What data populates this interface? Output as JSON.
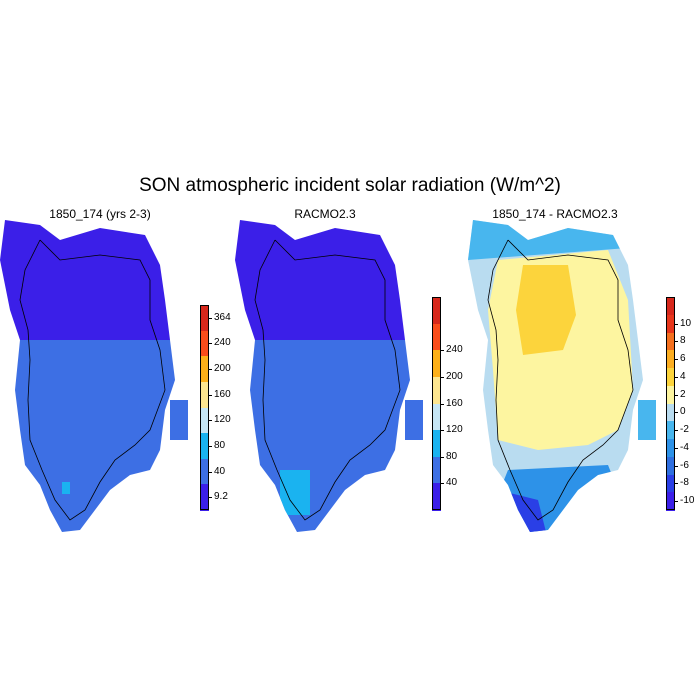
{
  "figure": {
    "title": "SON atmospheric incident solar radiation (W/m^2)"
  },
  "panels": [
    {
      "title": "1850_174 (yrs 2-3)",
      "colorbar": {
        "labels": [
          "364",
          "240",
          "200",
          "160",
          "120",
          "80",
          "40",
          "9.2"
        ],
        "colors": [
          "#d7281c",
          "#fa4d1b",
          "#fdb019",
          "#fde690",
          "#c6e6f5",
          "#1ab3f0",
          "#3d6fe4",
          "#3b1fe8"
        ]
      }
    },
    {
      "title": "RACMO2.3",
      "colorbar": {
        "labels": [
          "240",
          "200",
          "160",
          "120",
          "80",
          "40"
        ],
        "colors": [
          "#d7281c",
          "#fa4d1b",
          "#fdb019",
          "#fde690",
          "#c6e6f5",
          "#1ab3f0",
          "#3d6fe4",
          "#3b1fe8"
        ]
      }
    },
    {
      "title": "1850_174 - RACMO2.3",
      "colorbar": {
        "labels": [
          "10",
          "8",
          "6",
          "4",
          "2",
          "0",
          "-2",
          "-4",
          "-6",
          "-8",
          "-10"
        ],
        "colors": [
          "#d7281c",
          "#e8361b",
          "#f5701e",
          "#fcae22",
          "#fcd43c",
          "#fdf5a0",
          "#b9dcf0",
          "#48b6ee",
          "#2d92e8",
          "#2f6fe0",
          "#2a3fe6",
          "#3b1fe8"
        ]
      }
    }
  ]
}
